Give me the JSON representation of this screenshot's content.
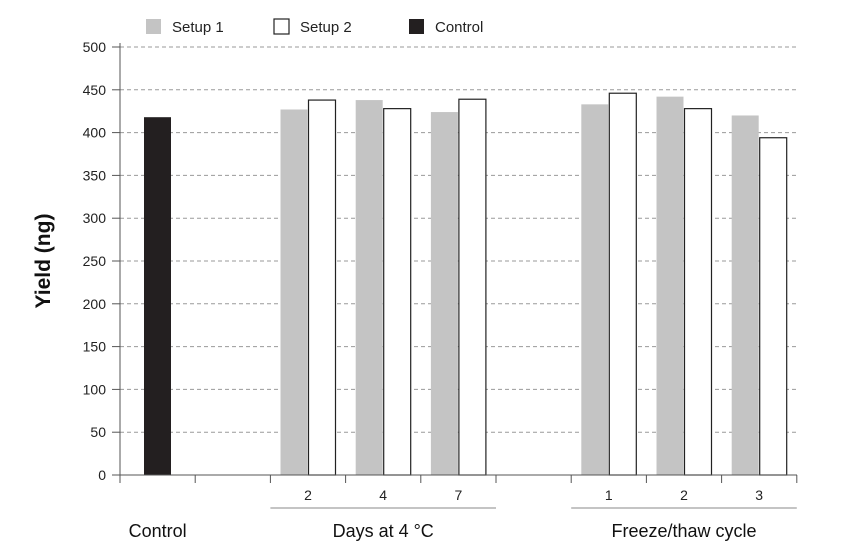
{
  "chart_data": {
    "type": "bar",
    "ylabel": "Yield (ng)",
    "ylim": [
      0,
      500
    ],
    "yticks": [
      0,
      50,
      100,
      150,
      200,
      250,
      300,
      350,
      400,
      450,
      500
    ],
    "grid": true,
    "legend_position": "top",
    "series": [
      {
        "name": "Setup 1",
        "color": "#c4c4c4",
        "fill_style": "solid-gray"
      },
      {
        "name": "Setup 2",
        "color": "#ffffff",
        "fill_style": "white-outlined"
      },
      {
        "name": "Control",
        "color": "#231f20",
        "fill_style": "solid-black"
      }
    ],
    "groups": [
      {
        "label": "Control",
        "categories": [
          ""
        ],
        "bars": [
          {
            "series": "Control",
            "values": [
              418
            ]
          }
        ]
      },
      {
        "label": "Days at 4 °C",
        "categories": [
          "2",
          "4",
          "7"
        ],
        "bars": [
          {
            "series": "Setup 1",
            "values": [
              427,
              438,
              424
            ]
          },
          {
            "series": "Setup 2",
            "values": [
              438,
              428,
              439
            ]
          }
        ]
      },
      {
        "label": "Freeze/thaw cycle",
        "categories": [
          "1",
          "2",
          "3"
        ],
        "bars": [
          {
            "series": "Setup 1",
            "values": [
              433,
              442,
              420
            ]
          },
          {
            "series": "Setup 2",
            "values": [
              446,
              428,
              394
            ]
          }
        ]
      }
    ]
  }
}
